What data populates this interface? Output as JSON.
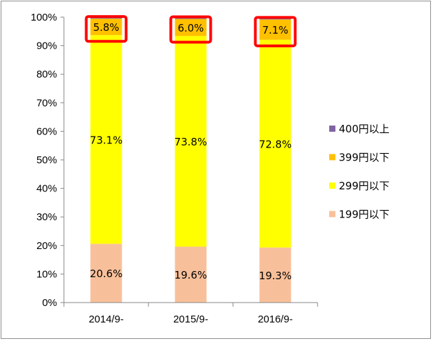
{
  "chart_data": {
    "type": "bar",
    "stacked": true,
    "categories": [
      "2014/9-",
      "2015/9-",
      "2016/9-"
    ],
    "ylim": [
      0,
      100
    ],
    "y_ticks": [
      "0%",
      "10%",
      "20%",
      "30%",
      "40%",
      "50%",
      "60%",
      "70%",
      "80%",
      "90%",
      "100%"
    ],
    "series": [
      {
        "name": "199円以下",
        "color": "#f8c09a",
        "values": [
          20.6,
          19.6,
          19.3
        ],
        "labels": [
          "20.6%",
          "19.6%",
          "19.3%"
        ]
      },
      {
        "name": "299円以下",
        "color": "#ffff00",
        "values": [
          73.1,
          73.8,
          72.8
        ],
        "labels": [
          "73.1%",
          "73.8%",
          "72.8%"
        ]
      },
      {
        "name": "399円以下",
        "color": "#ffc000",
        "values": [
          5.8,
          6.0,
          7.1
        ],
        "labels": [
          "5.8%",
          "6.0%",
          "7.1%"
        ]
      },
      {
        "name": "400円以上",
        "color": "#8064a2",
        "values": [
          0.5,
          0.6,
          0.8
        ]
      }
    ],
    "legend_position": "right",
    "highlight_color": "#ff0000",
    "grid": false
  }
}
